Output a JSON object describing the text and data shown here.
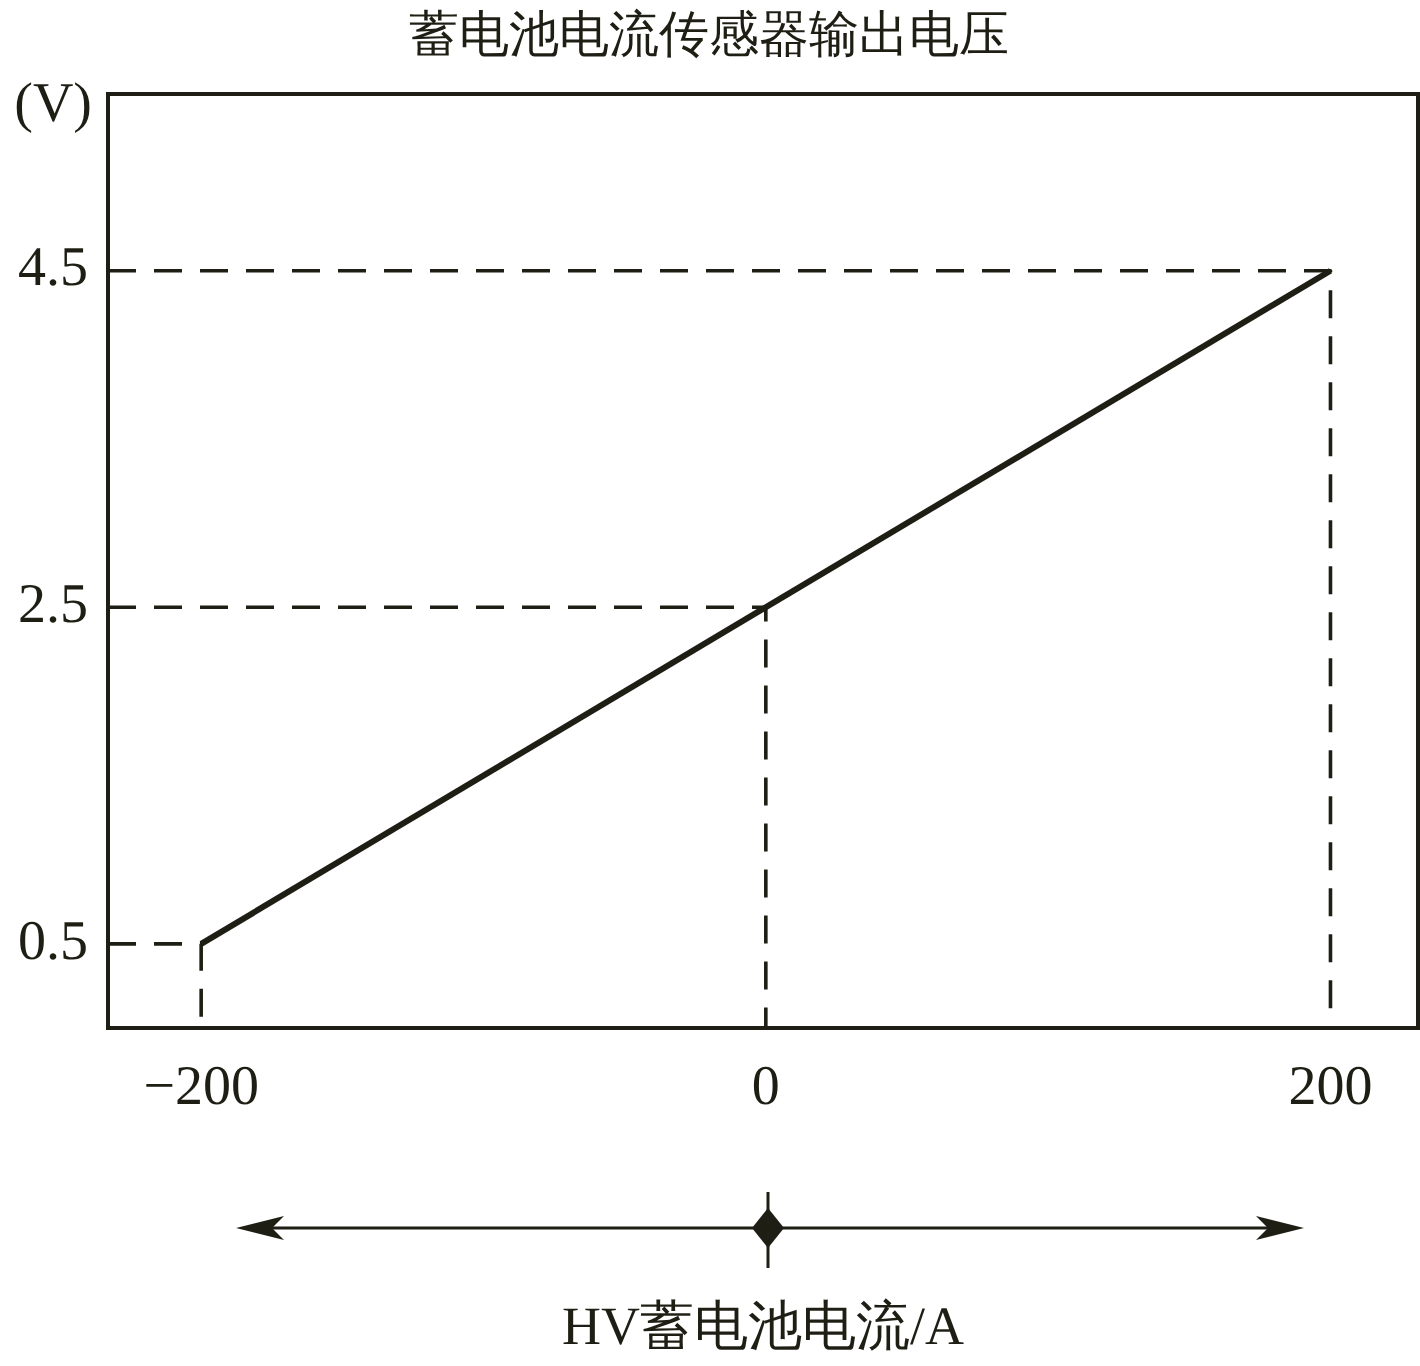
{
  "chart_data": {
    "type": "line",
    "title": "蓄电池电流传感器输出电压",
    "xlabel": "HV蓄电池电流/A",
    "ylabel": "(V)",
    "x": [
      -200,
      200
    ],
    "series": [
      {
        "color": "#1e1e14",
        "values": [
          0.5,
          4.5
        ]
      },
      {
        "type": "line",
        "color": "#1e1e14",
        "x": [
          -233,
          -200,
          -200
        ],
        "values": [
          0.5,
          0.5,
          0
        ],
        "line_style": "dashed"
      },
      {
        "type": "line",
        "color": "#1e1e14",
        "x": [
          -233,
          0,
          0
        ],
        "values": [
          2.5,
          2.5,
          0
        ],
        "line_style": "dashed"
      },
      {
        "type": "line",
        "color": "#1e1e14",
        "x": [
          -233,
          200,
          200
        ],
        "values": [
          4.5,
          4.5,
          0
        ],
        "line_style": "dashed"
      }
    ],
    "xlim": [
      -233,
      231
    ],
    "xticks": [
      {
        "value": -200,
        "label": "−200"
      },
      0,
      200
    ],
    "ylim": [
      0,
      5.55
    ],
    "yticks": [
      0.5,
      2.5,
      4.5
    ],
    "marker": "none",
    "line_style": "solid"
  }
}
